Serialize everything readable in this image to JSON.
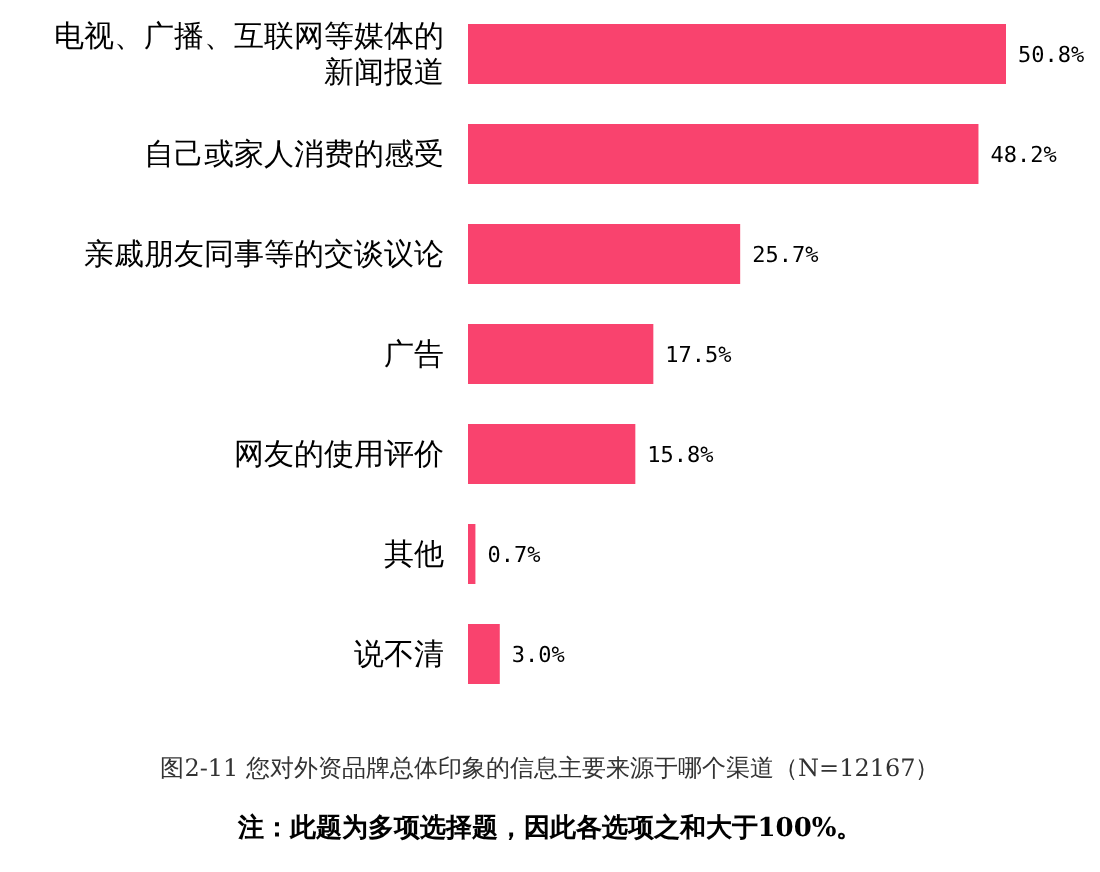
{
  "chart_data": {
    "type": "bar",
    "orientation": "horizontal",
    "title": "图2-11 您对外资品牌总体印象的信息主要来源于哪个渠道（N=12167）",
    "categories": [
      "电视、广播、互联网等媒体的新闻报道",
      "自己或家人消费的感受",
      "亲戚朋友同事等的交谈议论",
      "广告",
      "网友的使用评价",
      "其他",
      "说不清"
    ],
    "values": [
      50.8,
      48.2,
      25.7,
      17.5,
      15.8,
      0.7,
      3.0
    ],
    "value_labels": [
      "50.8%",
      "48.2%",
      "25.7%",
      "17.5%",
      "15.8%",
      "0.7%",
      "3.0%"
    ],
    "color": "#f9436e",
    "annotations": [
      "注：此题为多项选择题，因此各选项之和大于100%。"
    ]
  }
}
